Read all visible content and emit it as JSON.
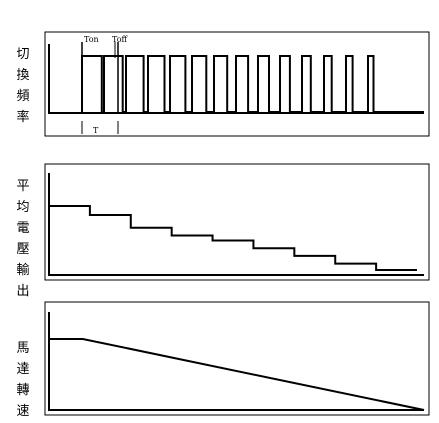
{
  "panels": [
    {
      "label": [
        "切",
        "換",
        "頻",
        "率"
      ],
      "annotations": {
        "ton": "Ton",
        "toff": "Toff",
        "period": "T"
      },
      "pulse_duty_cycles": [
        0.9,
        0.85,
        0.8,
        0.75,
        0.7,
        0.65,
        0.6,
        0.55,
        0.5,
        0.45,
        0.4,
        0.35,
        0.3,
        0.25
      ]
    },
    {
      "label": [
        "平",
        "均",
        "電",
        "壓",
        "輸",
        "出"
      ],
      "average_voltage_levels": [
        1.0,
        0.86,
        0.66,
        0.54,
        0.46,
        0.34,
        0.22,
        0.1,
        0.0
      ]
    },
    {
      "label": [
        "馬",
        "達",
        "轉",
        "速"
      ],
      "motor_speed": {
        "start_level": 1.0,
        "hold_fraction": 0.09,
        "end_level": 0.0
      }
    }
  ]
}
